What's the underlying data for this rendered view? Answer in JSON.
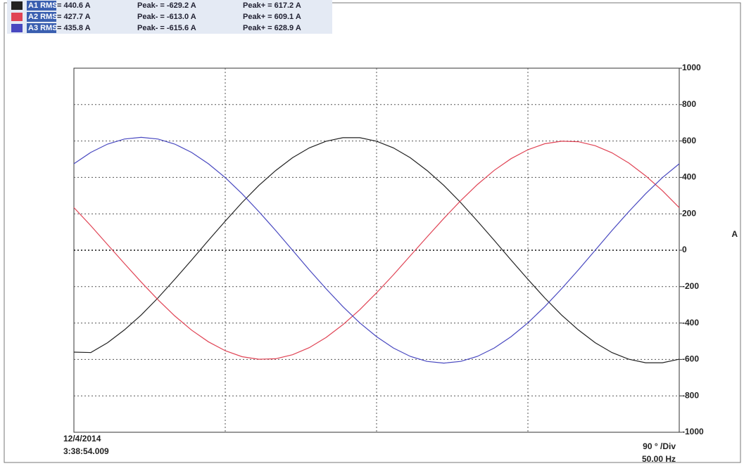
{
  "chart_data": {
    "type": "line",
    "y_label": "A",
    "date": "12/4/2014",
    "time": "3:38:54.009",
    "scale": "90 ° /Div",
    "frequency": "50.00 Hz",
    "ylim": [
      -1000,
      1000
    ],
    "yticks": [
      -1000,
      -800,
      -600,
      -400,
      -200,
      0,
      200,
      400,
      600,
      800,
      1000
    ],
    "grid": true,
    "series": [
      {
        "name": "A1 RMS",
        "rms": "= 440.6 A",
        "peak_min": "Peak- = -629.2 A",
        "peak_max": "Peak+ = 617.2 A",
        "color": "#222222",
        "values": [
          -560,
          -562,
          -508,
          -438,
          -356,
          -262,
          -160,
          -54,
          54,
          160,
          262,
          356,
          438,
          508,
          562,
          599,
          618,
          618,
          599,
          562,
          508,
          438,
          356,
          262,
          160,
          54,
          -54,
          -160,
          -262,
          -356,
          -438,
          -508,
          -562,
          -599,
          -618,
          -618,
          -599
        ]
      },
      {
        "name": "A2 RMS",
        "rms": "= 427.7 A",
        "peak_min": "Peak- = -613.0 A",
        "peak_max": "Peak+ = 609.1 A",
        "color": "#e04455",
        "values": [
          234,
          135,
          31,
          -73,
          -175,
          -272,
          -361,
          -439,
          -503,
          -552,
          -585,
          -599,
          -596,
          -574,
          -535,
          -479,
          -409,
          -327,
          -234,
          -135,
          -31,
          73,
          175,
          272,
          361,
          439,
          503,
          552,
          585,
          599,
          596,
          574,
          535,
          479,
          409,
          327,
          234
        ]
      },
      {
        "name": "A3 RMS",
        "rms": "= 435.8 A",
        "peak_min": "Peak- = -615.6 A",
        "peak_max": "Peak+ = 628.9 A",
        "color": "#4848c0",
        "values": [
          475,
          537,
          583,
          611,
          620,
          611,
          583,
          537,
          475,
          399,
          310,
          212,
          108,
          0,
          -108,
          -212,
          -310,
          -399,
          -475,
          -537,
          -583,
          -611,
          -620,
          -611,
          -583,
          -537,
          -475,
          -399,
          -310,
          -212,
          -108,
          0,
          108,
          212,
          310,
          399,
          475
        ]
      }
    ]
  }
}
